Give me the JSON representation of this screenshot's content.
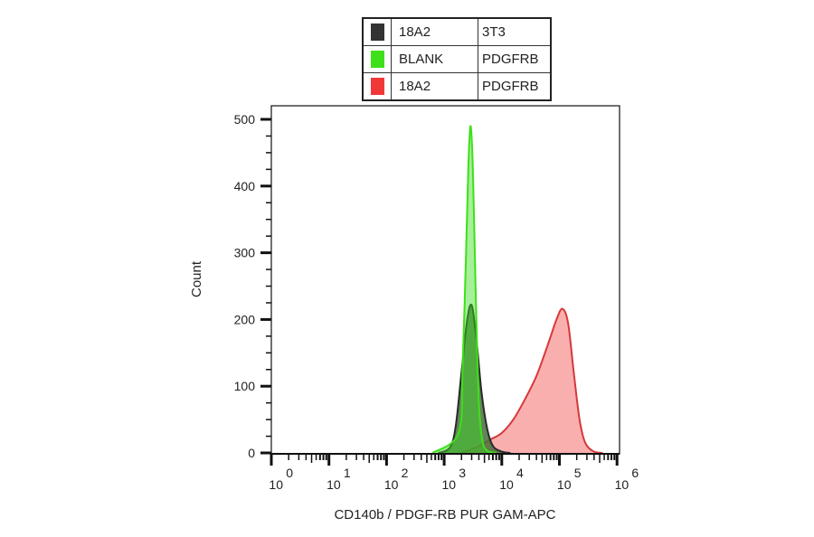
{
  "chart_data": {
    "type": "area",
    "title": "",
    "xlabel": "CD140b / PDGF-RB PUR GAM-APC",
    "ylabel": "Count",
    "xscale": "log",
    "xlim": [
      1,
      1000000
    ],
    "ylim": [
      0,
      520
    ],
    "x_ticks": [
      {
        "base": "10",
        "exp": "0",
        "value": 1
      },
      {
        "base": "10",
        "exp": "1",
        "value": 10
      },
      {
        "base": "10",
        "exp": "2",
        "value": 100
      },
      {
        "base": "10",
        "exp": "3",
        "value": 1000
      },
      {
        "base": "10",
        "exp": "4",
        "value": 10000
      },
      {
        "base": "10",
        "exp": "5",
        "value": 100000
      },
      {
        "base": "10",
        "exp": "6",
        "value": 1000000
      }
    ],
    "y_ticks": [
      0,
      100,
      200,
      300,
      400,
      500
    ],
    "legend_position": "top",
    "series": [
      {
        "name": "BLANK PDGFRB",
        "label1": "BLANK",
        "label2": "PDGFRB",
        "color": "#3ee01a",
        "fill": "rgba(60,220,30,0.45)",
        "points_log10_x": [
          2.8,
          3.25,
          3.32,
          3.38,
          3.42,
          3.46,
          3.5,
          3.55,
          3.6,
          3.66,
          3.75,
          3.9
        ],
        "counts": [
          0,
          30,
          130,
          300,
          430,
          490,
          420,
          230,
          80,
          20,
          3,
          0
        ]
      },
      {
        "name": "18A2 3T3",
        "label1": "18A2",
        "label2": "3T3",
        "color": "#2a2a2a",
        "fill": "rgba(70,110,60,0.85)",
        "points_log10_x": [
          2.9,
          3.1,
          3.2,
          3.3,
          3.4,
          3.48,
          3.56,
          3.65,
          3.75,
          3.85,
          4.0,
          4.15
        ],
        "counts": [
          0,
          8,
          40,
          120,
          200,
          221,
          170,
          90,
          35,
          10,
          2,
          0
        ]
      },
      {
        "name": "18A2 PDGFRB",
        "label1": "18A2",
        "label2": "PDGFRB",
        "color": "#d6383a",
        "fill": "rgba(245,110,110,0.55)",
        "points_log10_x": [
          3.3,
          3.6,
          3.8,
          4.0,
          4.2,
          4.4,
          4.6,
          4.75,
          4.85,
          4.95,
          5.05,
          5.15,
          5.25,
          5.35,
          5.45,
          5.6,
          5.75
        ],
        "counts": [
          0,
          10,
          20,
          30,
          50,
          80,
          115,
          150,
          175,
          200,
          216,
          195,
          120,
          50,
          15,
          2,
          0
        ]
      }
    ]
  },
  "legend": {
    "rows": [
      {
        "swatch": "#333333",
        "col1": "18A2",
        "col2": "3T3"
      },
      {
        "swatch": "#3ee01a",
        "col1": "BLANK",
        "col2": "PDGFRB"
      },
      {
        "swatch": "#f03838",
        "col1": "18A2",
        "col2": "PDGFRB"
      }
    ]
  }
}
